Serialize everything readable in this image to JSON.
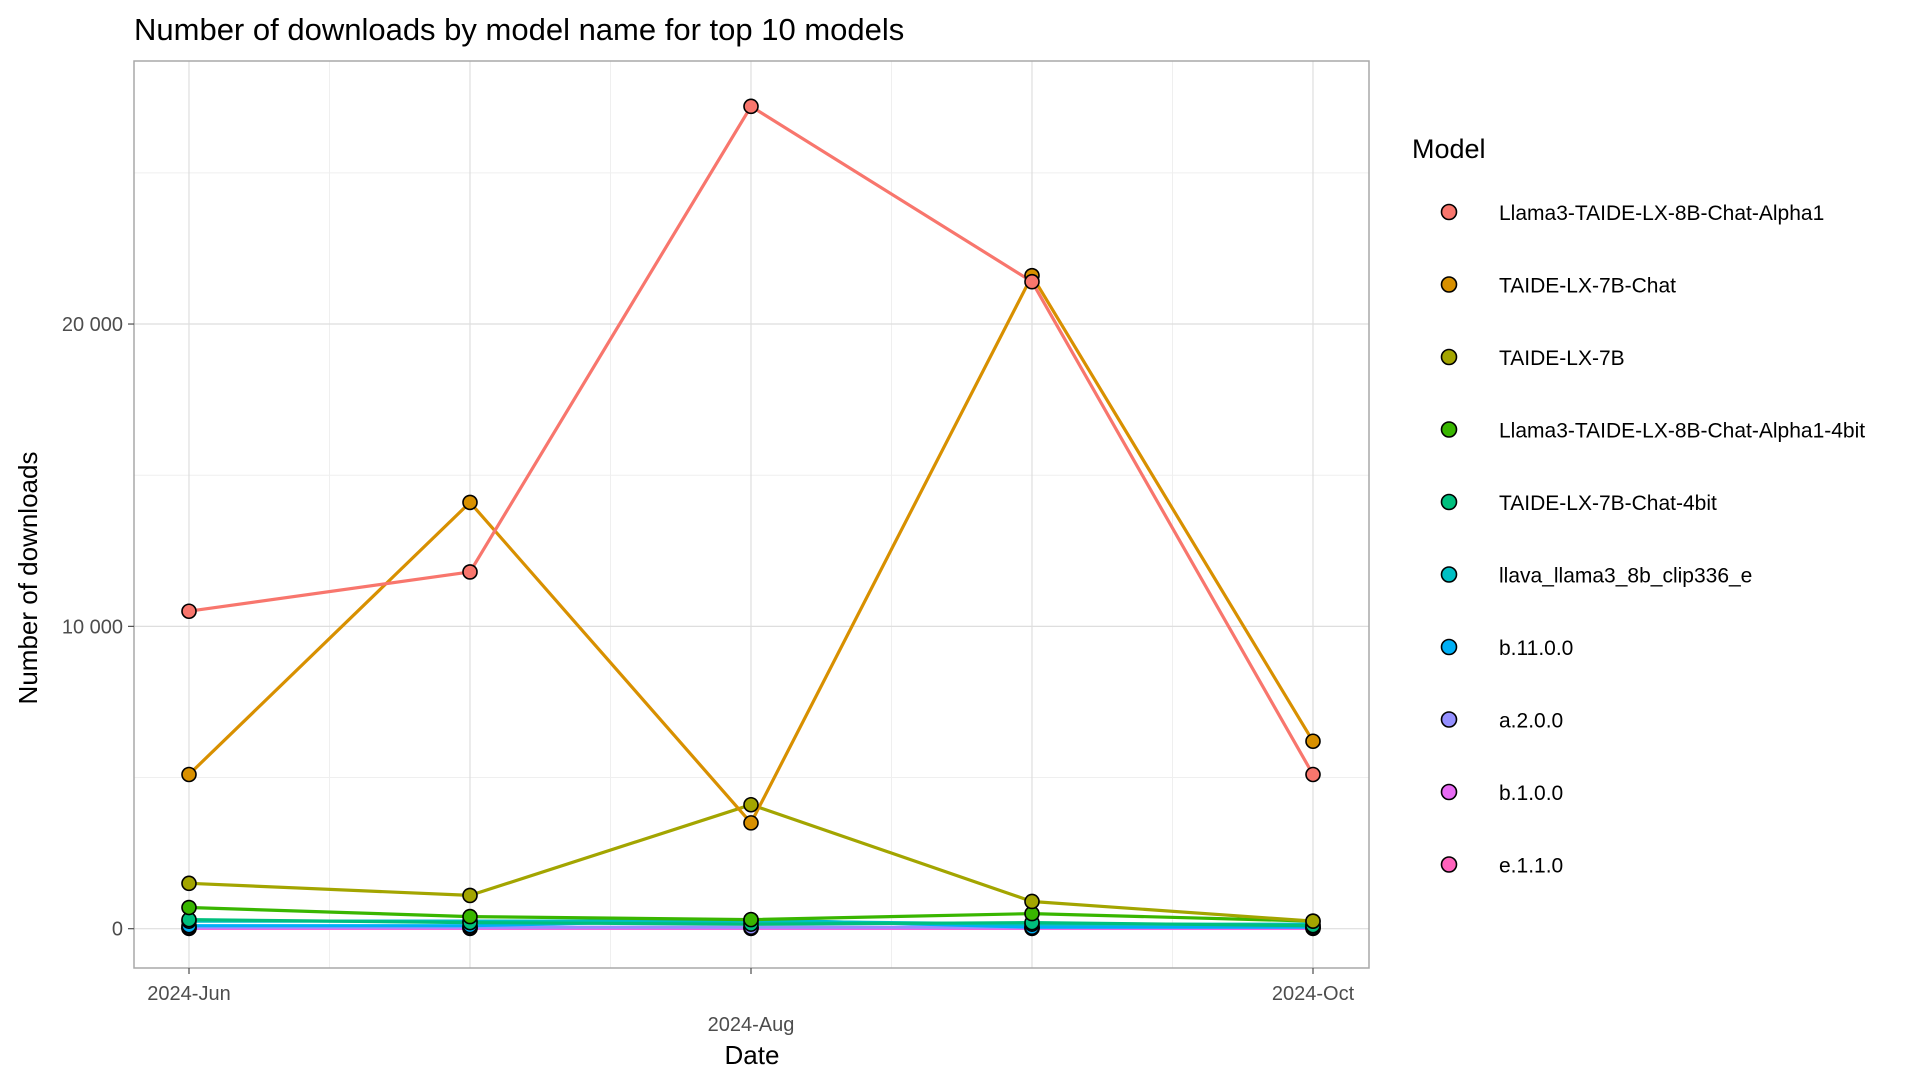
{
  "chart_data": {
    "type": "line",
    "title": "Number of downloads by model name for top 10 models",
    "xlabel": "Date",
    "ylabel": "Number of downloads",
    "x": [
      "2024-06",
      "2024-07",
      "2024-08",
      "2024-09",
      "2024-10"
    ],
    "x_ticks": [
      {
        "date": "2024-06",
        "label": "2024-Jun",
        "row": 0
      },
      {
        "date": "2024-08",
        "label": "2024-Aug",
        "row": 1
      },
      {
        "date": "2024-10",
        "label": "2024-Oct",
        "row": 0
      }
    ],
    "y_ticks": [
      {
        "value": 0,
        "label": "0"
      },
      {
        "value": 10000,
        "label": "10 000"
      },
      {
        "value": 20000,
        "label": "20 000"
      }
    ],
    "ylim": [
      -1300,
      28700
    ],
    "grid": true,
    "legend": {
      "title": "Model",
      "position": "right"
    },
    "series": [
      {
        "name": "Llama3-TAIDE-LX-8B-Chat-Alpha1",
        "color": "#F8766D",
        "values": [
          10500,
          11800,
          27200,
          21400,
          5100
        ]
      },
      {
        "name": "TAIDE-LX-7B-Chat",
        "color": "#D89000",
        "values": [
          5100,
          14100,
          3500,
          21600,
          6200
        ]
      },
      {
        "name": "TAIDE-LX-7B",
        "color": "#A3A500",
        "values": [
          1500,
          1100,
          4100,
          900,
          250
        ]
      },
      {
        "name": "Llama3-TAIDE-LX-8B-Chat-Alpha1-4bit",
        "color": "#39B600",
        "values": [
          700,
          400,
          300,
          500,
          250
        ]
      },
      {
        "name": "TAIDE-LX-7B-Chat-4bit",
        "color": "#00BF7D",
        "values": [
          300,
          200,
          150,
          200,
          100
        ]
      },
      {
        "name": "llava_llama3_8b_clip336_e",
        "color": "#00BFC4",
        "values": [
          250,
          250,
          250,
          150,
          150
        ]
      },
      {
        "name": "b.11.0.0",
        "color": "#00B0F6",
        "values": [
          100,
          100,
          300,
          50,
          50
        ]
      },
      {
        "name": "a.2.0.0",
        "color": "#9590FF",
        "values": [
          50,
          50,
          50,
          50,
          50
        ]
      },
      {
        "name": "b.1.0.0",
        "color": "#E76BF3",
        "values": [
          20,
          20,
          20,
          20,
          20
        ]
      },
      {
        "name": "e.1.1.0",
        "color": "#FF62BC",
        "values": [
          10,
          10,
          10,
          10,
          10
        ]
      }
    ]
  }
}
